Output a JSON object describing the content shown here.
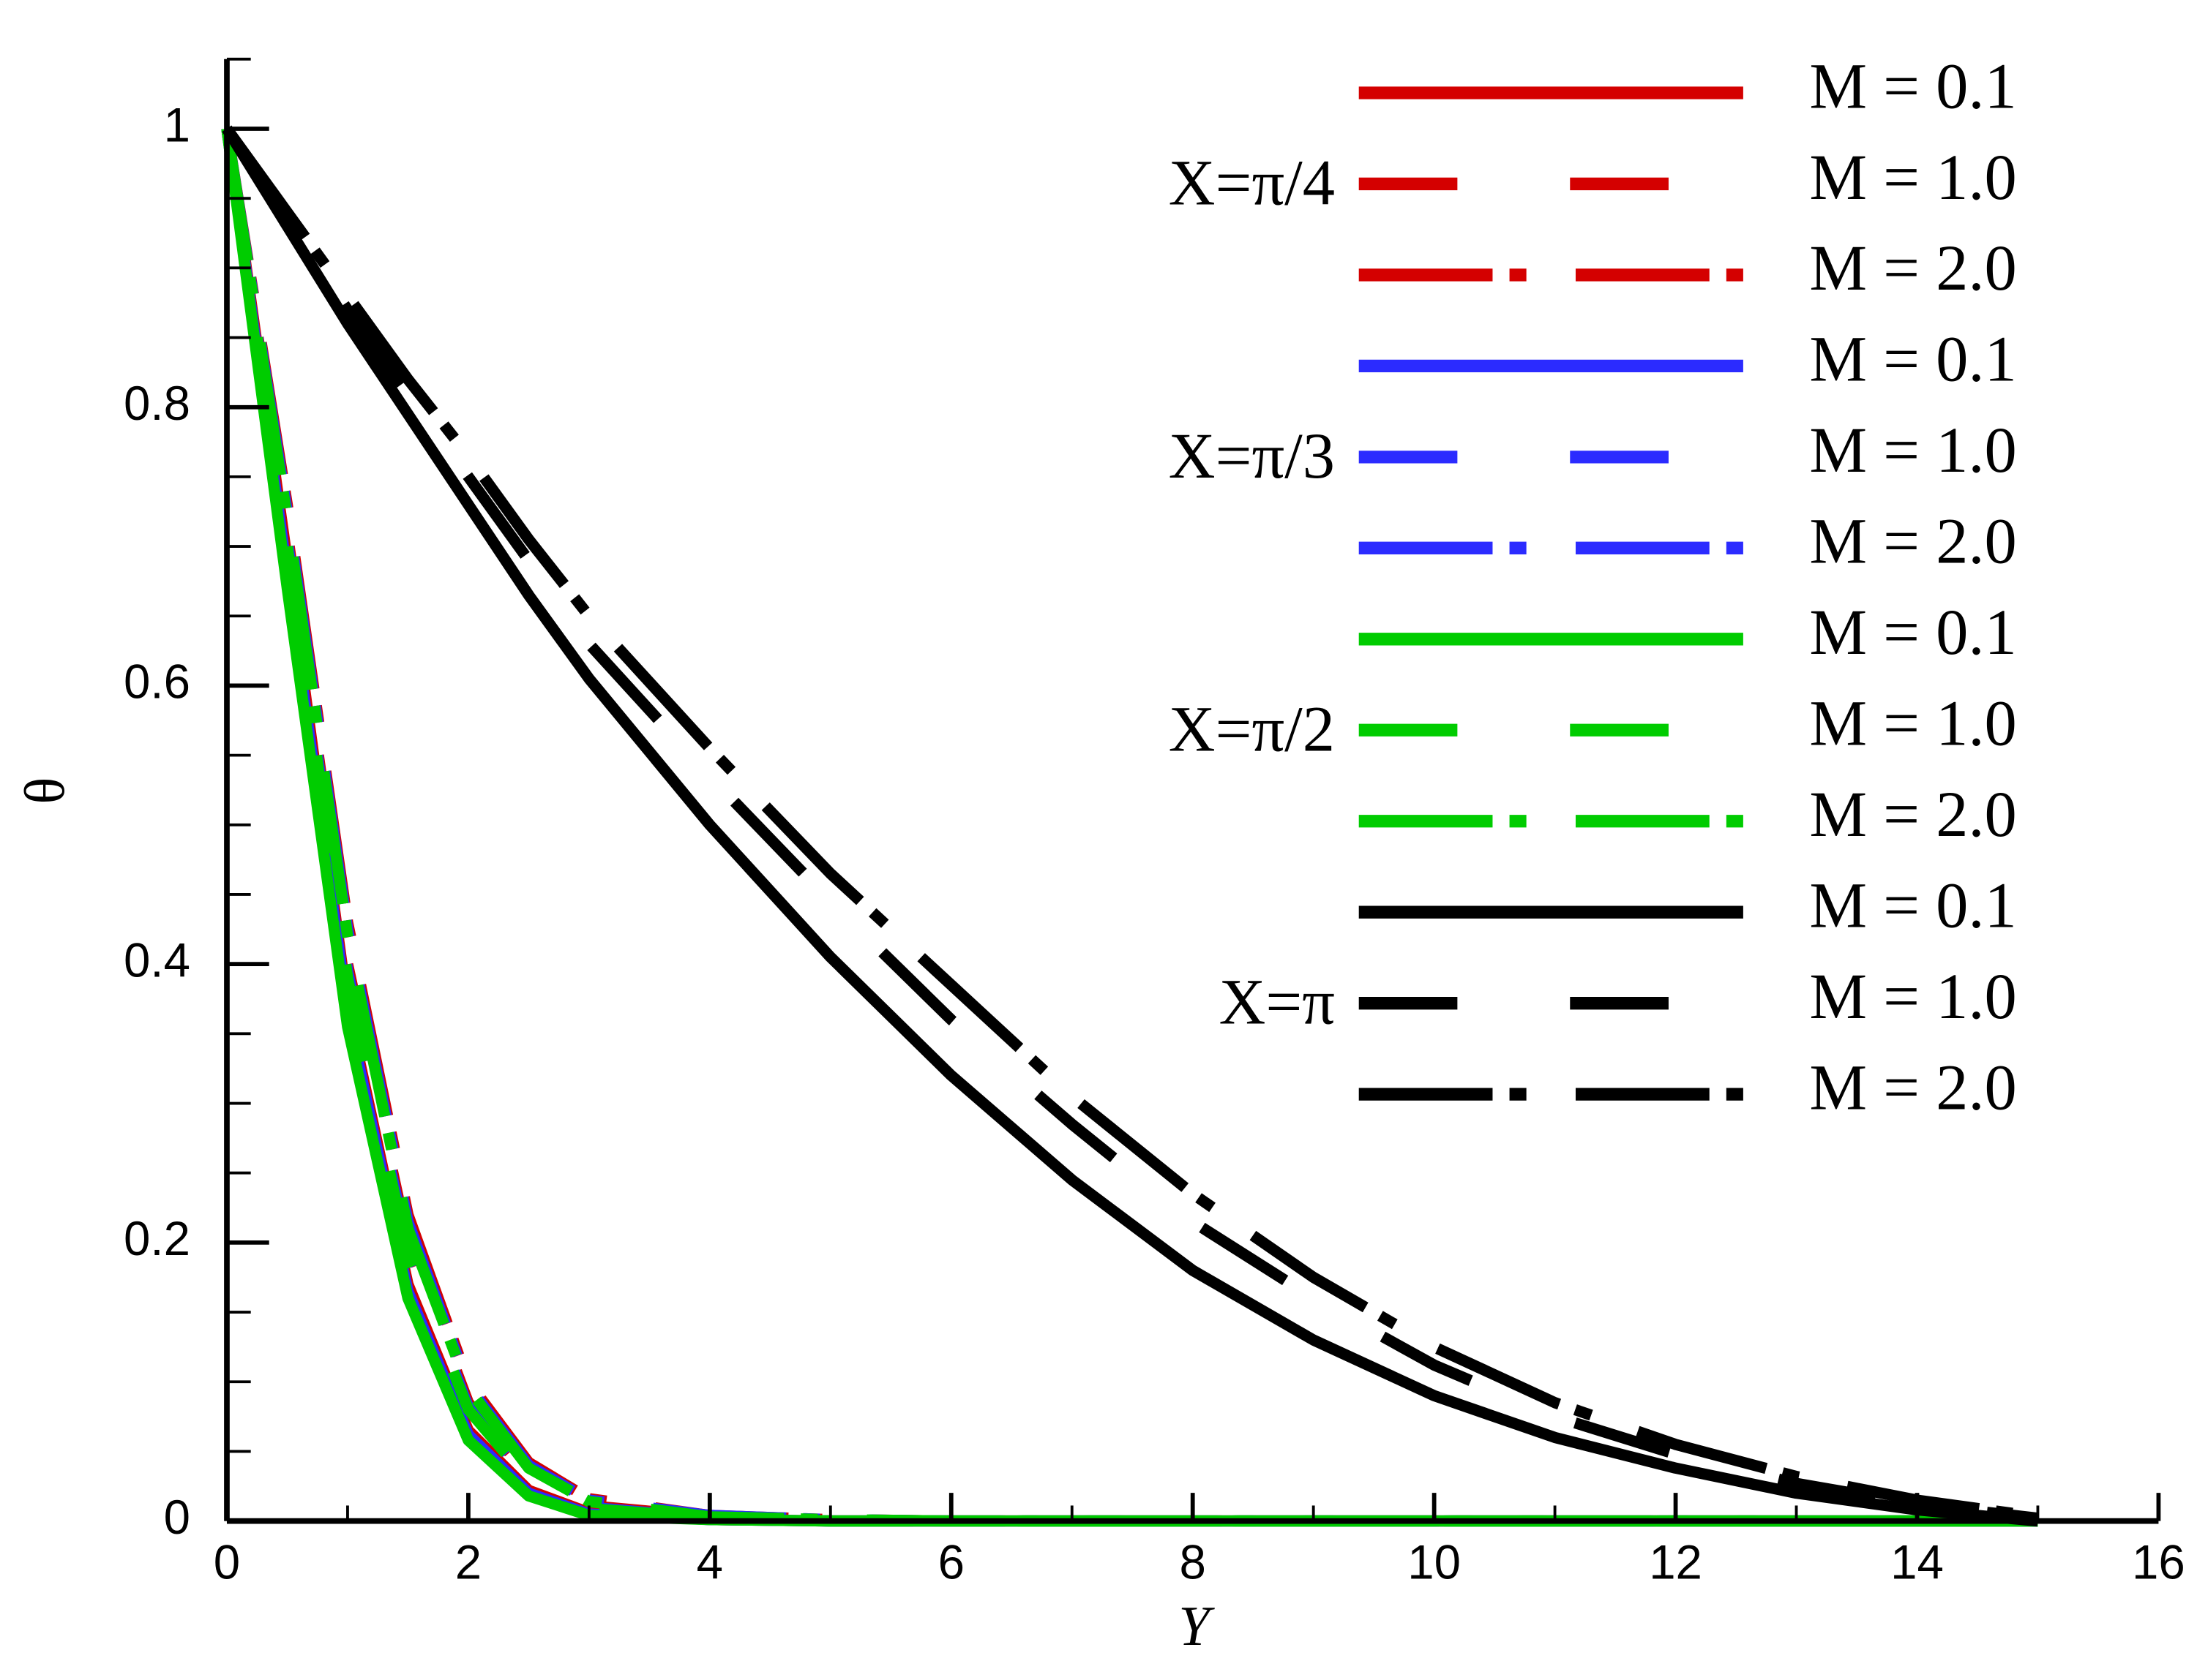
{
  "chart_data": {
    "type": "line",
    "x_label": "Y",
    "y_label": "θ",
    "x": [
      0,
      0.5,
      1,
      1.5,
      2,
      2.5,
      3,
      4,
      5,
      6,
      7,
      8,
      9,
      10,
      11,
      12,
      13,
      14,
      15
    ],
    "xlim": [
      0,
      16
    ],
    "xticks": [
      0,
      2,
      4,
      6,
      8,
      10,
      12,
      14,
      16
    ],
    "xminorticks": [
      1,
      3,
      5,
      7,
      9,
      11,
      13,
      15
    ],
    "ylim": [
      0,
      1.05
    ],
    "yticks": [
      0,
      0.2,
      0.4,
      0.6,
      0.8,
      1
    ],
    "yminorticks": [
      0.05,
      0.1,
      0.15,
      0.25,
      0.3,
      0.35,
      0.45,
      0.5,
      0.55,
      0.65,
      0.7,
      0.75,
      0.85,
      0.9,
      0.95,
      1.05
    ],
    "series": [
      {
        "name": "M = 0.1",
        "group": "X=π/4",
        "color": "#d40000",
        "dash": "solid",
        "values": [
          1,
          0.69,
          0.37,
          0.17,
          0.065,
          0.022,
          0.006,
          0.001,
          0,
          0,
          0,
          0,
          0,
          0,
          0,
          0,
          0,
          0,
          0
        ]
      },
      {
        "name": "M = 1.0",
        "group": "X=π/4",
        "color": "#d40000",
        "dash": "dashed",
        "values": [
          1,
          0.71,
          0.4,
          0.2,
          0.085,
          0.032,
          0.011,
          0.003,
          0,
          0,
          0,
          0,
          0,
          0,
          0,
          0,
          0,
          0,
          0
        ]
      },
      {
        "name": "M = 2.0",
        "group": "X=π/4",
        "color": "#d40000",
        "dash": "dashdot",
        "values": [
          1,
          0.73,
          0.43,
          0.22,
          0.1,
          0.042,
          0.016,
          0.004,
          0.001,
          0,
          0,
          0,
          0,
          0,
          0,
          0,
          0,
          0,
          0
        ]
      },
      {
        "name": "M = 0.1",
        "group": "X=π/3",
        "color": "#2b2bff",
        "dash": "solid",
        "values": [
          1,
          0.68,
          0.365,
          0.165,
          0.062,
          0.02,
          0.005,
          0.001,
          0,
          0,
          0,
          0,
          0,
          0,
          0,
          0,
          0,
          0,
          0
        ]
      },
      {
        "name": "M = 1.0",
        "group": "X=π/3",
        "color": "#2b2bff",
        "dash": "dashed",
        "values": [
          1,
          0.705,
          0.395,
          0.195,
          0.082,
          0.03,
          0.01,
          0.002,
          0,
          0,
          0,
          0,
          0,
          0,
          0,
          0,
          0,
          0,
          0
        ]
      },
      {
        "name": "M = 2.0",
        "group": "X=π/3",
        "color": "#2b2bff",
        "dash": "dashdot",
        "values": [
          1,
          0.725,
          0.425,
          0.215,
          0.097,
          0.04,
          0.015,
          0.004,
          0.001,
          0,
          0,
          0,
          0,
          0,
          0,
          0,
          0,
          0,
          0
        ]
      },
      {
        "name": "M = 0.1",
        "group": "X=π/2",
        "color": "#00cc00",
        "dash": "solid",
        "values": [
          1,
          0.67,
          0.355,
          0.16,
          0.058,
          0.018,
          0.004,
          0.001,
          0,
          0,
          0,
          0,
          0,
          0,
          0,
          0,
          0,
          0,
          0
        ]
      },
      {
        "name": "M = 1.0",
        "group": "X=π/2",
        "color": "#00cc00",
        "dash": "dashed",
        "values": [
          1,
          0.7,
          0.39,
          0.19,
          0.08,
          0.029,
          0.009,
          0.002,
          0,
          0,
          0,
          0,
          0,
          0,
          0,
          0,
          0,
          0,
          0
        ]
      },
      {
        "name": "M = 2.0",
        "group": "X=π/2",
        "color": "#00cc00",
        "dash": "dashdot",
        "values": [
          1,
          0.72,
          0.42,
          0.21,
          0.095,
          0.038,
          0.014,
          0.003,
          0.001,
          0,
          0,
          0,
          0,
          0,
          0,
          0,
          0,
          0,
          0
        ]
      },
      {
        "name": "M = 0.1",
        "group": "X=π",
        "color": "#000000",
        "dash": "solid",
        "values": [
          1,
          0.93,
          0.86,
          0.795,
          0.73,
          0.665,
          0.605,
          0.5,
          0.405,
          0.32,
          0.245,
          0.18,
          0.13,
          0.09,
          0.06,
          0.038,
          0.02,
          0.008,
          0
        ]
      },
      {
        "name": "M = 1.0",
        "group": "X=π",
        "color": "#000000",
        "dash": "dashed",
        "values": [
          1,
          0.935,
          0.87,
          0.81,
          0.75,
          0.69,
          0.63,
          0.535,
          0.445,
          0.36,
          0.285,
          0.215,
          0.16,
          0.112,
          0.075,
          0.048,
          0.027,
          0.012,
          0.002
        ]
      },
      {
        "name": "M = 2.0",
        "group": "X=π",
        "color": "#000000",
        "dash": "dashdot",
        "values": [
          1,
          0.94,
          0.88,
          0.82,
          0.765,
          0.705,
          0.65,
          0.555,
          0.465,
          0.385,
          0.305,
          0.235,
          0.175,
          0.125,
          0.085,
          0.055,
          0.032,
          0.015,
          0.003
        ]
      }
    ]
  }
}
